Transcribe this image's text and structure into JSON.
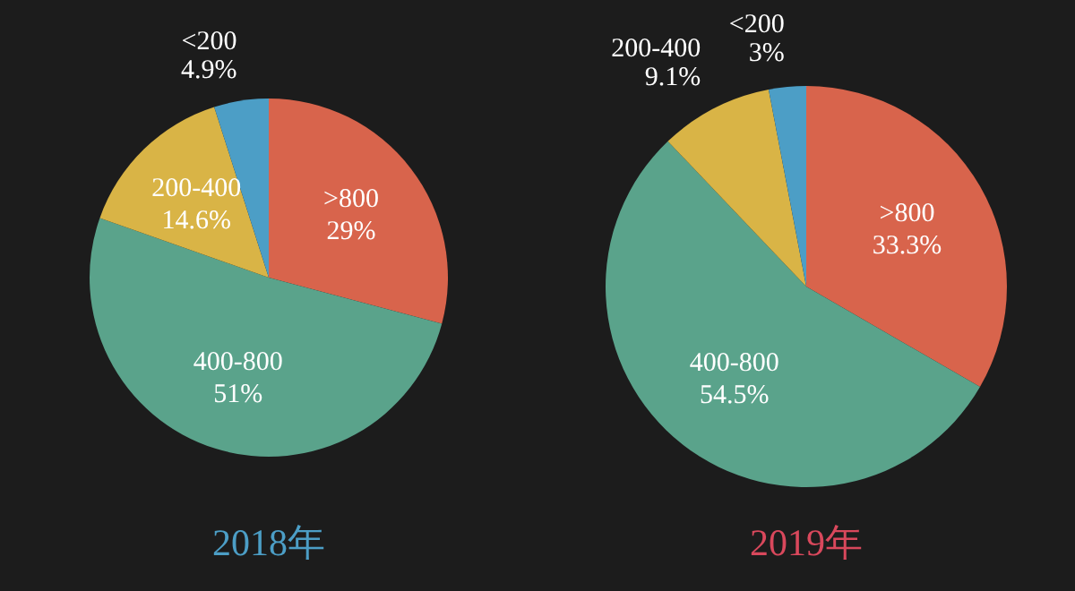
{
  "chart_data": [
    {
      "type": "pie",
      "title": "2018年",
      "categories": [
        ">800",
        "400-800",
        "200-400",
        "<200"
      ],
      "values": [
        29,
        51,
        14.6,
        4.9
      ],
      "value_labels": [
        "29%",
        "51%",
        "14.6%",
        "4.9%"
      ],
      "colors": [
        "#d8644c",
        "#5aa38b",
        "#d9b446",
        "#4c9ec6"
      ]
    },
    {
      "type": "pie",
      "title": "2019年",
      "categories": [
        ">800",
        "400-800",
        "200-400",
        "<200"
      ],
      "values": [
        33.3,
        54.5,
        9.1,
        3
      ],
      "value_labels": [
        "33.3%",
        "54.5%",
        "9.1%",
        "3%"
      ],
      "colors": [
        "#d8644c",
        "#5aa38b",
        "#d9b446",
        "#4c9ec6"
      ]
    }
  ]
}
